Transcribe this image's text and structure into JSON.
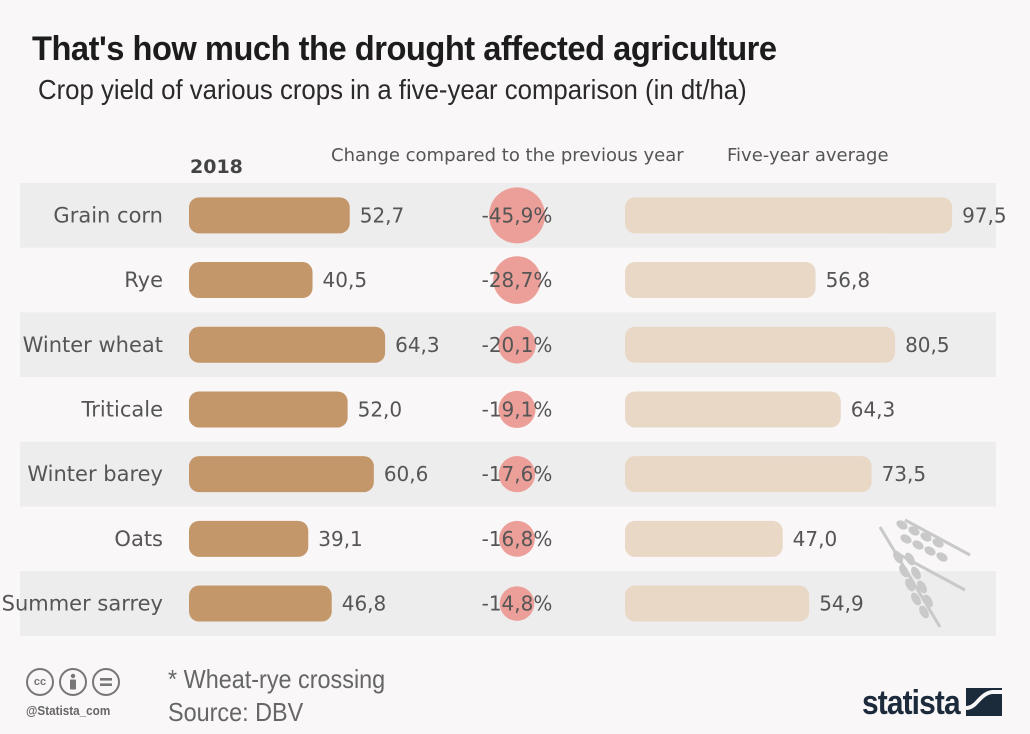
{
  "header": {
    "title": "That's how much the drought affected agriculture",
    "subtitle": "Crop yield of various crops in a five-year comparison (in dt/ha)"
  },
  "columns": {
    "year": "2018",
    "change": "Change compared to the previous year",
    "average": "Five-year average"
  },
  "colors": {
    "bar_2018": "#c4976a",
    "bar_avg": "#e8d8c5",
    "circle": "#ec9f98",
    "row_band": "#eeeded",
    "brand": "#1b2b3c"
  },
  "chart_data": {
    "type": "bar",
    "title": "That's how much the drought affected agriculture",
    "subtitle": "Crop yield of various crops in a five-year comparison (in dt/ha)",
    "unit": "dt/ha",
    "categories": [
      "Grain corn",
      "Rye",
      "Winter wheat",
      "Triticale",
      "Winter barey",
      "Oats",
      "Summer sarrey"
    ],
    "series": [
      {
        "name": "2018",
        "values": [
          52.7,
          40.5,
          64.3,
          52.0,
          60.6,
          39.1,
          46.8
        ],
        "labels": [
          "52,7",
          "40,5",
          "64,3",
          "52,0",
          "60,6",
          "39,1",
          "46,8"
        ]
      },
      {
        "name": "Change compared to the previous year",
        "unit": "%",
        "values": [
          -45.9,
          -28.7,
          -20.1,
          -19.1,
          -17.6,
          -16.8,
          -14.8
        ],
        "labels": [
          "-45,9%",
          "-28,7%",
          "-20,1%",
          "-19,1%",
          "-17,6%",
          "-16,8%",
          "-14,8%"
        ]
      },
      {
        "name": "Five-year average",
        "values": [
          97.5,
          56.8,
          80.5,
          64.3,
          73.5,
          47.0,
          54.9
        ],
        "labels": [
          "97,5",
          "56,8",
          "80,5",
          "64,3",
          "73,5",
          "47,0",
          "54,9"
        ]
      }
    ],
    "xlabel": "",
    "ylabel": "",
    "grid": false,
    "legend": "column headers on top"
  },
  "footer": {
    "note": "* Wheat-rye crossing",
    "source": "Source: DBV",
    "handle": "@Statista_com",
    "brand": "statista",
    "license_icons": [
      "cc",
      "by",
      "nd"
    ]
  },
  "decor": {
    "icon": "wheat-icon"
  }
}
